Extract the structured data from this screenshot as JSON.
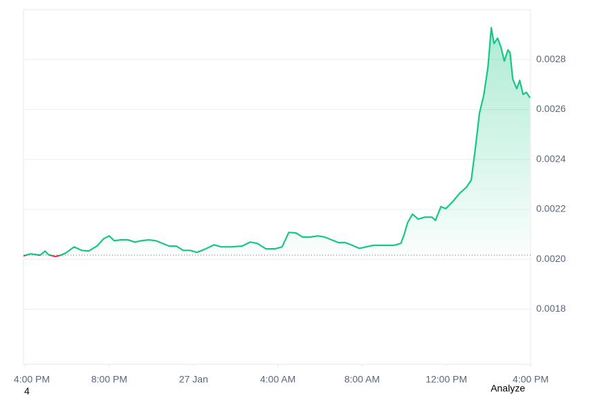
{
  "chart_data": {
    "type": "line",
    "x": [
      -0.07,
      0.26,
      0.52,
      0.72,
      0.95,
      1.11,
      1.44,
      1.7,
      1.93,
      2.33,
      2.69,
      3.02,
      3.41,
      3.74,
      4.0,
      4.23,
      4.56,
      4.89,
      5.21,
      5.54,
      5.87,
      6.2,
      6.52,
      6.85,
      7.18,
      7.51,
      7.84,
      8.16,
      8.49,
      8.98,
      9.31,
      9.8,
      10.3,
      10.69,
      11.02,
      11.44,
      11.87,
      12.2,
      12.52,
      12.85,
      13.18,
      13.51,
      13.9,
      14.23,
      14.56,
      14.89,
      15.21,
      15.54,
      15.87,
      16.2,
      16.52,
      16.85,
      17.18,
      17.51,
      17.84,
      18.0,
      18.16,
      18.39,
      18.66,
      18.98,
      19.31,
      19.48,
      19.74,
      19.97,
      20.3,
      20.62,
      20.95,
      21.18,
      21.38,
      21.57,
      21.77,
      21.97,
      22.13,
      22.26,
      22.43,
      22.59,
      22.75,
      22.92,
      23.02,
      23.15,
      23.34,
      23.48,
      23.64,
      23.8,
      23.97
    ],
    "series": [
      {
        "color": "#16c784",
        "below_color": "#ea3943",
        "values": [
          0.002014,
          0.002022,
          0.002019,
          0.002017,
          0.002033,
          0.002019,
          0.002011,
          0.002017,
          0.002025,
          0.00205,
          0.002036,
          0.002033,
          0.002053,
          0.002083,
          0.002094,
          0.002075,
          0.002078,
          0.002078,
          0.002069,
          0.002075,
          0.002078,
          0.002075,
          0.002064,
          0.002053,
          0.002053,
          0.002036,
          0.002036,
          0.002028,
          0.002039,
          0.002058,
          0.00205,
          0.00205,
          0.002053,
          0.002069,
          0.002064,
          0.002042,
          0.002042,
          0.00205,
          0.002108,
          0.002106,
          0.002089,
          0.002089,
          0.002094,
          0.002089,
          0.002078,
          0.002067,
          0.002067,
          0.002056,
          0.002044,
          0.00205,
          0.002056,
          0.002056,
          0.002056,
          0.002056,
          0.002064,
          0.0021,
          0.002147,
          0.002181,
          0.002161,
          0.002169,
          0.002169,
          0.002156,
          0.002211,
          0.002203,
          0.002231,
          0.002264,
          0.002289,
          0.002317,
          0.002447,
          0.002586,
          0.002656,
          0.002767,
          0.002928,
          0.002864,
          0.002886,
          0.00285,
          0.002794,
          0.002839,
          0.002828,
          0.002722,
          0.002683,
          0.002717,
          0.002661,
          0.002669,
          0.002647
        ]
      }
    ],
    "reference": 0.002017,
    "xlim": [
      -0.07,
      24
    ],
    "ylim": [
      0.00158,
      0.003
    ],
    "xticks": [
      {
        "value": 0,
        "label": "4:00 PM"
      },
      {
        "value": 4,
        "label": "8:00 PM"
      },
      {
        "value": 8,
        "label": "27 Jan"
      },
      {
        "value": 12,
        "label": "4:00 AM"
      },
      {
        "value": 16,
        "label": "8:00 AM"
      },
      {
        "value": 20,
        "label": "12:00 PM"
      },
      {
        "value": 24,
        "label": "4:00 PM"
      }
    ],
    "yticks": [
      0.0018,
      {
        "value": 0.002,
        "label": "0.0020"
      },
      0.0022,
      0.0024,
      0.0026,
      0.0028
    ],
    "grid": true
  },
  "footer": {
    "left": "4",
    "right": "Analyze"
  }
}
